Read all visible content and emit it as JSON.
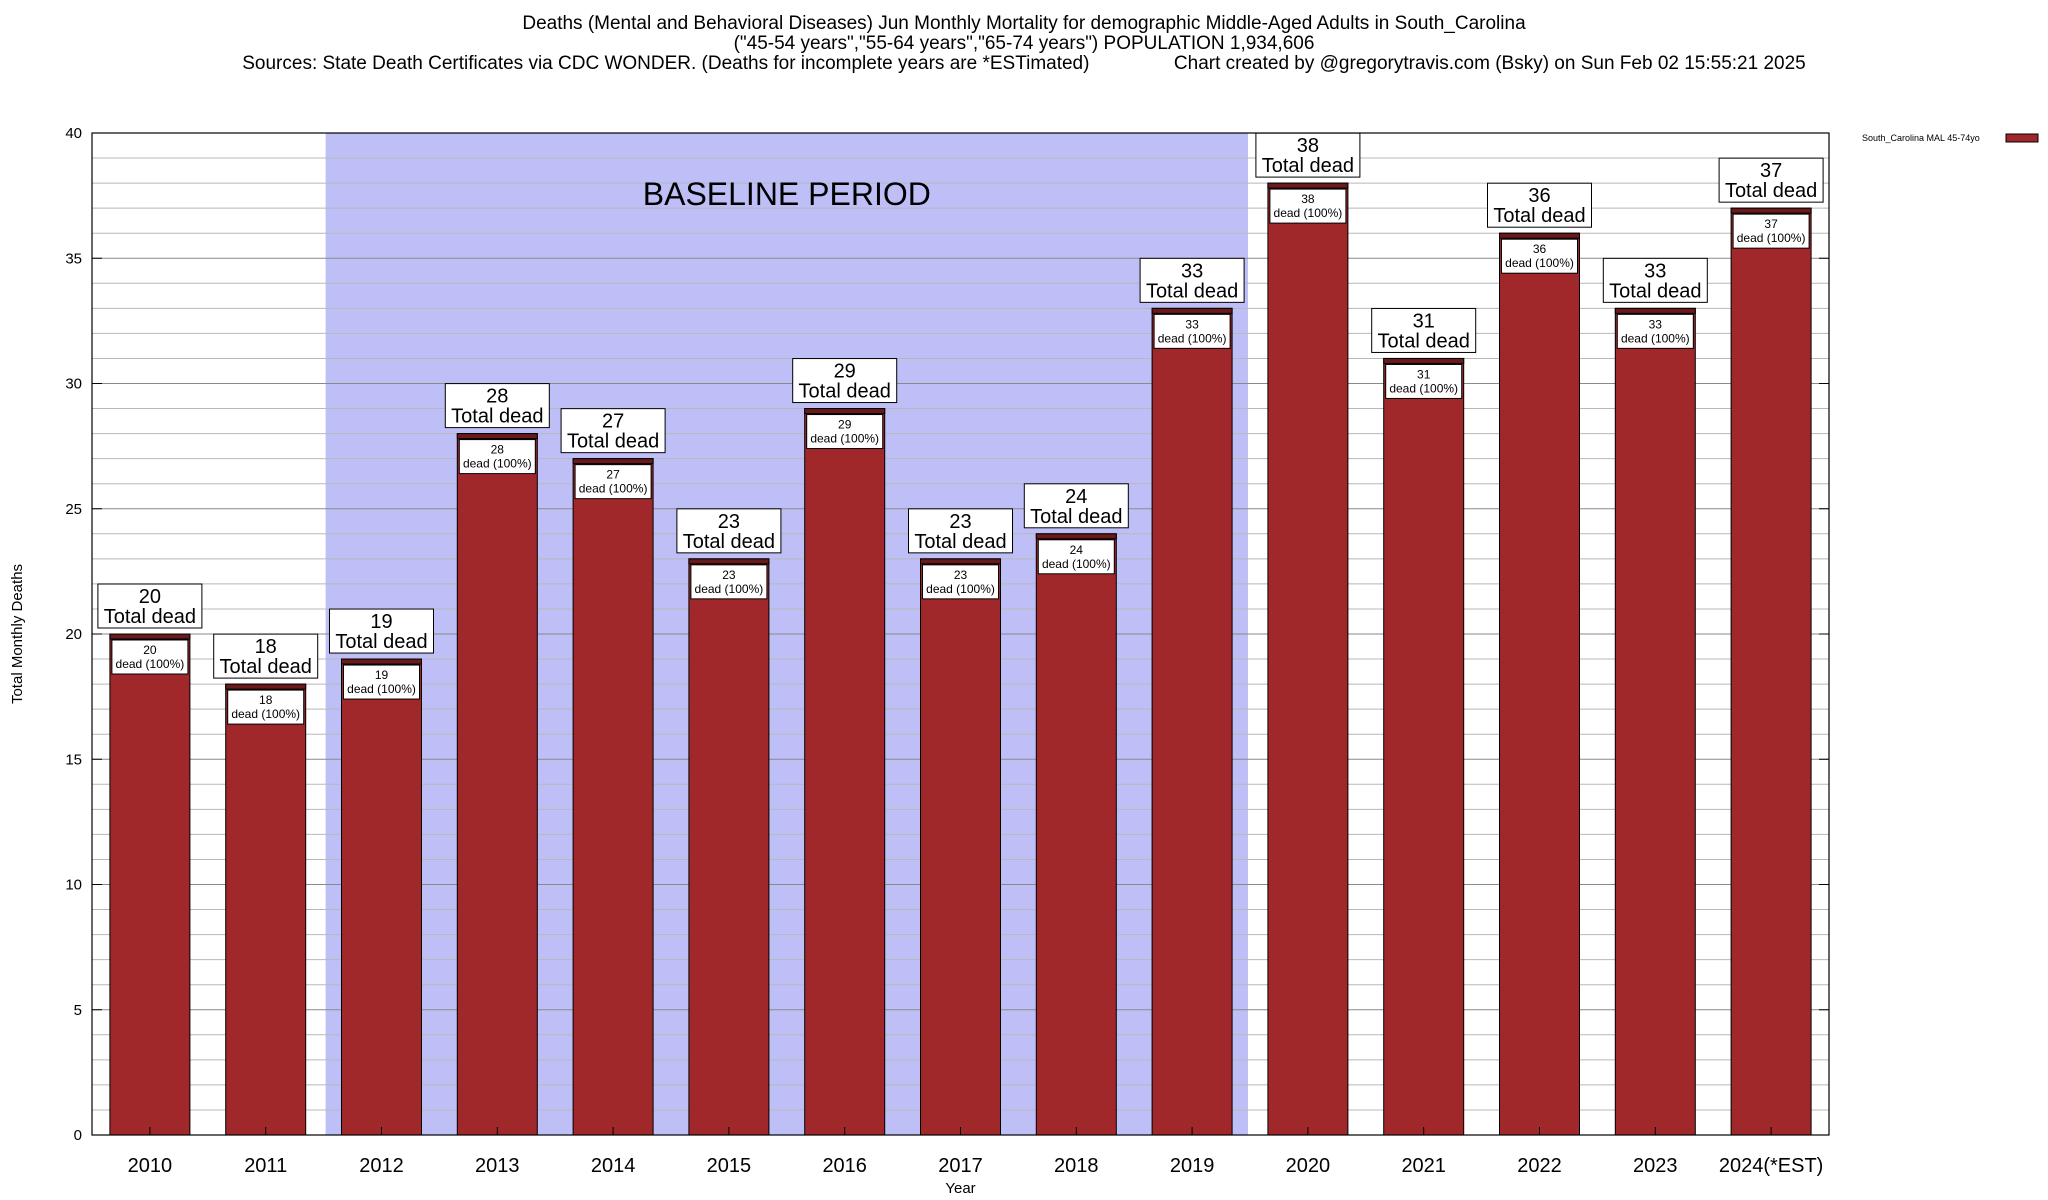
{
  "title_lines": [
    "Deaths (Mental and Behavioral Diseases) Jun Monthly Mortality for demographic Middle-Aged Adults in South_Carolina",
    "(\"45-54 years\",\"55-64 years\",\"65-74 years\") POPULATION 1,934,606",
    "Sources: State Death Certificates via CDC WONDER. (Deaths for incomplete years are *ESTimated)                Chart created by @gregorytravis.com (Bsky) on Sun Feb 02 15:55:21 2025"
  ],
  "chart_data": {
    "type": "bar",
    "categories": [
      "2010",
      "2011",
      "2012",
      "2013",
      "2014",
      "2015",
      "2016",
      "2017",
      "2018",
      "2019",
      "2020",
      "2021",
      "2022",
      "2023",
      "2024(*EST)"
    ],
    "series": [
      {
        "name": "South_Carolina MAL 45-74yo",
        "values": [
          20,
          18,
          19,
          28,
          27,
          23,
          29,
          23,
          24,
          33,
          38,
          31,
          36,
          33,
          37
        ]
      }
    ],
    "xlabel": "Year",
    "ylabel": "Total Monthly Deaths",
    "ylim": [
      0,
      40
    ],
    "yticks": [
      0,
      5,
      10,
      15,
      20,
      25,
      30,
      35,
      40
    ],
    "grid": true,
    "legend_position": "top-right",
    "total_label_suffix": "Total dead",
    "inner_label_suffix": "dead (100%)",
    "baseline_period": {
      "label": "BASELINE PERIOD",
      "start": "2012",
      "end": "2019"
    },
    "colors": {
      "bar": "#a0282a",
      "bar_cap": "#6a1a1b",
      "baseline_fill": "#bfbff8"
    }
  }
}
